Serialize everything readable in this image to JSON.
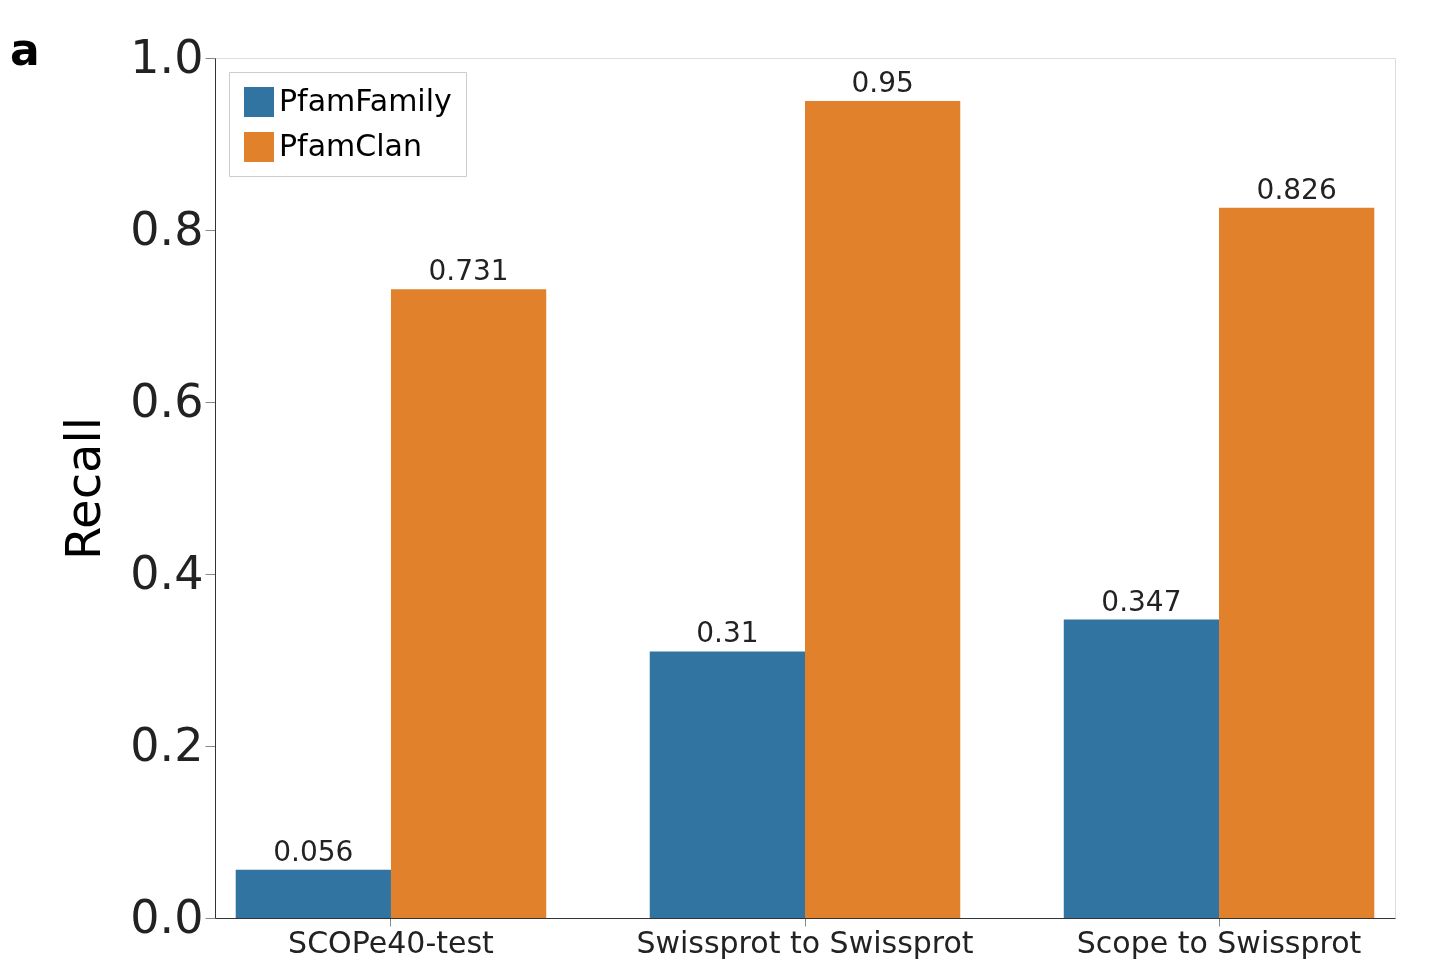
{
  "chart_data": {
    "type": "bar",
    "ylabel": "Recall",
    "annotations": [
      "a"
    ],
    "categories": [
      "SCOPe40-test",
      "Swissprot to Swissprot",
      "Scope to Swissprot"
    ],
    "series": [
      {
        "name": "PfamFamily",
        "color": "#3274a1",
        "values": [
          0.056,
          0.31,
          0.347
        ]
      },
      {
        "name": "PfamClan",
        "color": "#e1812c",
        "values": [
          0.731,
          0.95,
          0.826
        ]
      }
    ],
    "ylim": [
      0,
      1
    ],
    "yticks": [
      {
        "value": 0,
        "label": "0.0"
      },
      {
        "value": 0.2,
        "label": "0.2"
      },
      {
        "value": 0.4,
        "label": "0.4"
      },
      {
        "value": 0.6,
        "label": "0.6"
      },
      {
        "value": 0.8,
        "label": "0.8"
      },
      {
        "value": 1,
        "label": "1.0"
      }
    ],
    "data_labels": true,
    "legend": "top left",
    "grid": false
  }
}
